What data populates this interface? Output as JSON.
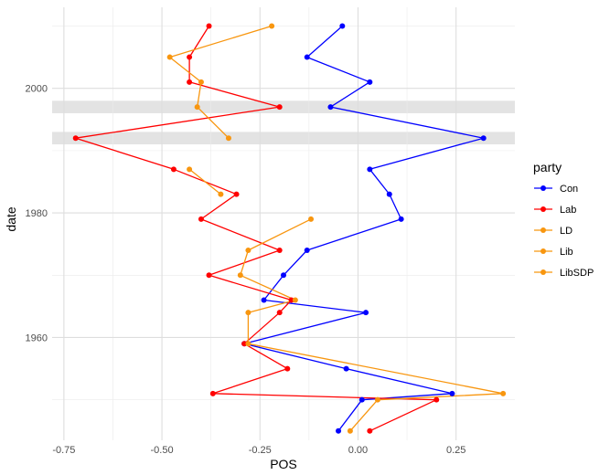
{
  "chart_data": {
    "type": "line",
    "xlabel": "POS",
    "ylabel": "date",
    "xlim": [
      -0.78,
      0.4
    ],
    "ylim": [
      1943.5,
      2013
    ],
    "x_ticks": [
      -0.75,
      -0.5,
      -0.25,
      0.0,
      0.25
    ],
    "x_tick_labels": [
      "-0.75",
      "-0.50",
      "-0.25",
      "0.00",
      "0.25"
    ],
    "y_ticks": [
      1960,
      1980,
      2000
    ],
    "y_tick_labels": [
      "1960",
      "1980",
      "2000"
    ],
    "grid": true,
    "shaded_bands": [
      {
        "from": 1991,
        "to": 1993
      },
      {
        "from": 1996,
        "to": 1998
      }
    ],
    "legend": {
      "title": "party",
      "position": "right"
    },
    "series": [
      {
        "name": "Con",
        "color": "#0000ff",
        "points": [
          {
            "x": -0.05,
            "y": 1945
          },
          {
            "x": 0.01,
            "y": 1950
          },
          {
            "x": 0.24,
            "y": 1951
          },
          {
            "x": -0.03,
            "y": 1955
          },
          {
            "x": -0.29,
            "y": 1959
          },
          {
            "x": 0.02,
            "y": 1964
          },
          {
            "x": -0.24,
            "y": 1966
          },
          {
            "x": -0.19,
            "y": 1970
          },
          {
            "x": -0.13,
            "y": 1974
          },
          {
            "x": 0.11,
            "y": 1979
          },
          {
            "x": 0.08,
            "y": 1983
          },
          {
            "x": 0.03,
            "y": 1987
          },
          {
            "x": 0.32,
            "y": 1992
          },
          {
            "x": -0.07,
            "y": 1997
          },
          {
            "x": 0.03,
            "y": 2001
          },
          {
            "x": -0.13,
            "y": 2005
          },
          {
            "x": -0.04,
            "y": 2010
          }
        ]
      },
      {
        "name": "Lab",
        "color": "#ff0000",
        "points": [
          {
            "x": 0.03,
            "y": 1945
          },
          {
            "x": 0.2,
            "y": 1950
          },
          {
            "x": -0.37,
            "y": 1951
          },
          {
            "x": -0.18,
            "y": 1955
          },
          {
            "x": -0.29,
            "y": 1959
          },
          {
            "x": -0.2,
            "y": 1964
          },
          {
            "x": -0.17,
            "y": 1966
          },
          {
            "x": -0.38,
            "y": 1970
          },
          {
            "x": -0.2,
            "y": 1974
          },
          {
            "x": -0.4,
            "y": 1979
          },
          {
            "x": -0.31,
            "y": 1983
          },
          {
            "x": -0.47,
            "y": 1987
          },
          {
            "x": -0.72,
            "y": 1992
          },
          {
            "x": -0.2,
            "y": 1997
          },
          {
            "x": -0.43,
            "y": 2001
          },
          {
            "x": -0.43,
            "y": 2005
          },
          {
            "x": -0.38,
            "y": 2010
          }
        ]
      },
      {
        "name": "LD",
        "color": "#f8960f",
        "points": [
          {
            "x": -0.33,
            "y": 1992
          },
          {
            "x": -0.41,
            "y": 1997
          },
          {
            "x": -0.4,
            "y": 2001
          },
          {
            "x": -0.48,
            "y": 2005
          },
          {
            "x": -0.22,
            "y": 2010
          }
        ]
      },
      {
        "name": "Lib",
        "color": "#f8960f",
        "points": [
          {
            "x": -0.02,
            "y": 1945
          },
          {
            "x": 0.05,
            "y": 1950
          },
          {
            "x": 0.37,
            "y": 1951
          },
          {
            "x": -0.28,
            "y": 1959
          },
          {
            "x": -0.28,
            "y": 1964
          },
          {
            "x": -0.16,
            "y": 1966
          },
          {
            "x": -0.3,
            "y": 1970
          },
          {
            "x": -0.28,
            "y": 1974
          },
          {
            "x": -0.12,
            "y": 1979
          }
        ]
      },
      {
        "name": "LibSDP",
        "color": "#f8960f",
        "points": [
          {
            "x": -0.35,
            "y": 1983
          },
          {
            "x": -0.43,
            "y": 1987
          }
        ]
      }
    ]
  }
}
